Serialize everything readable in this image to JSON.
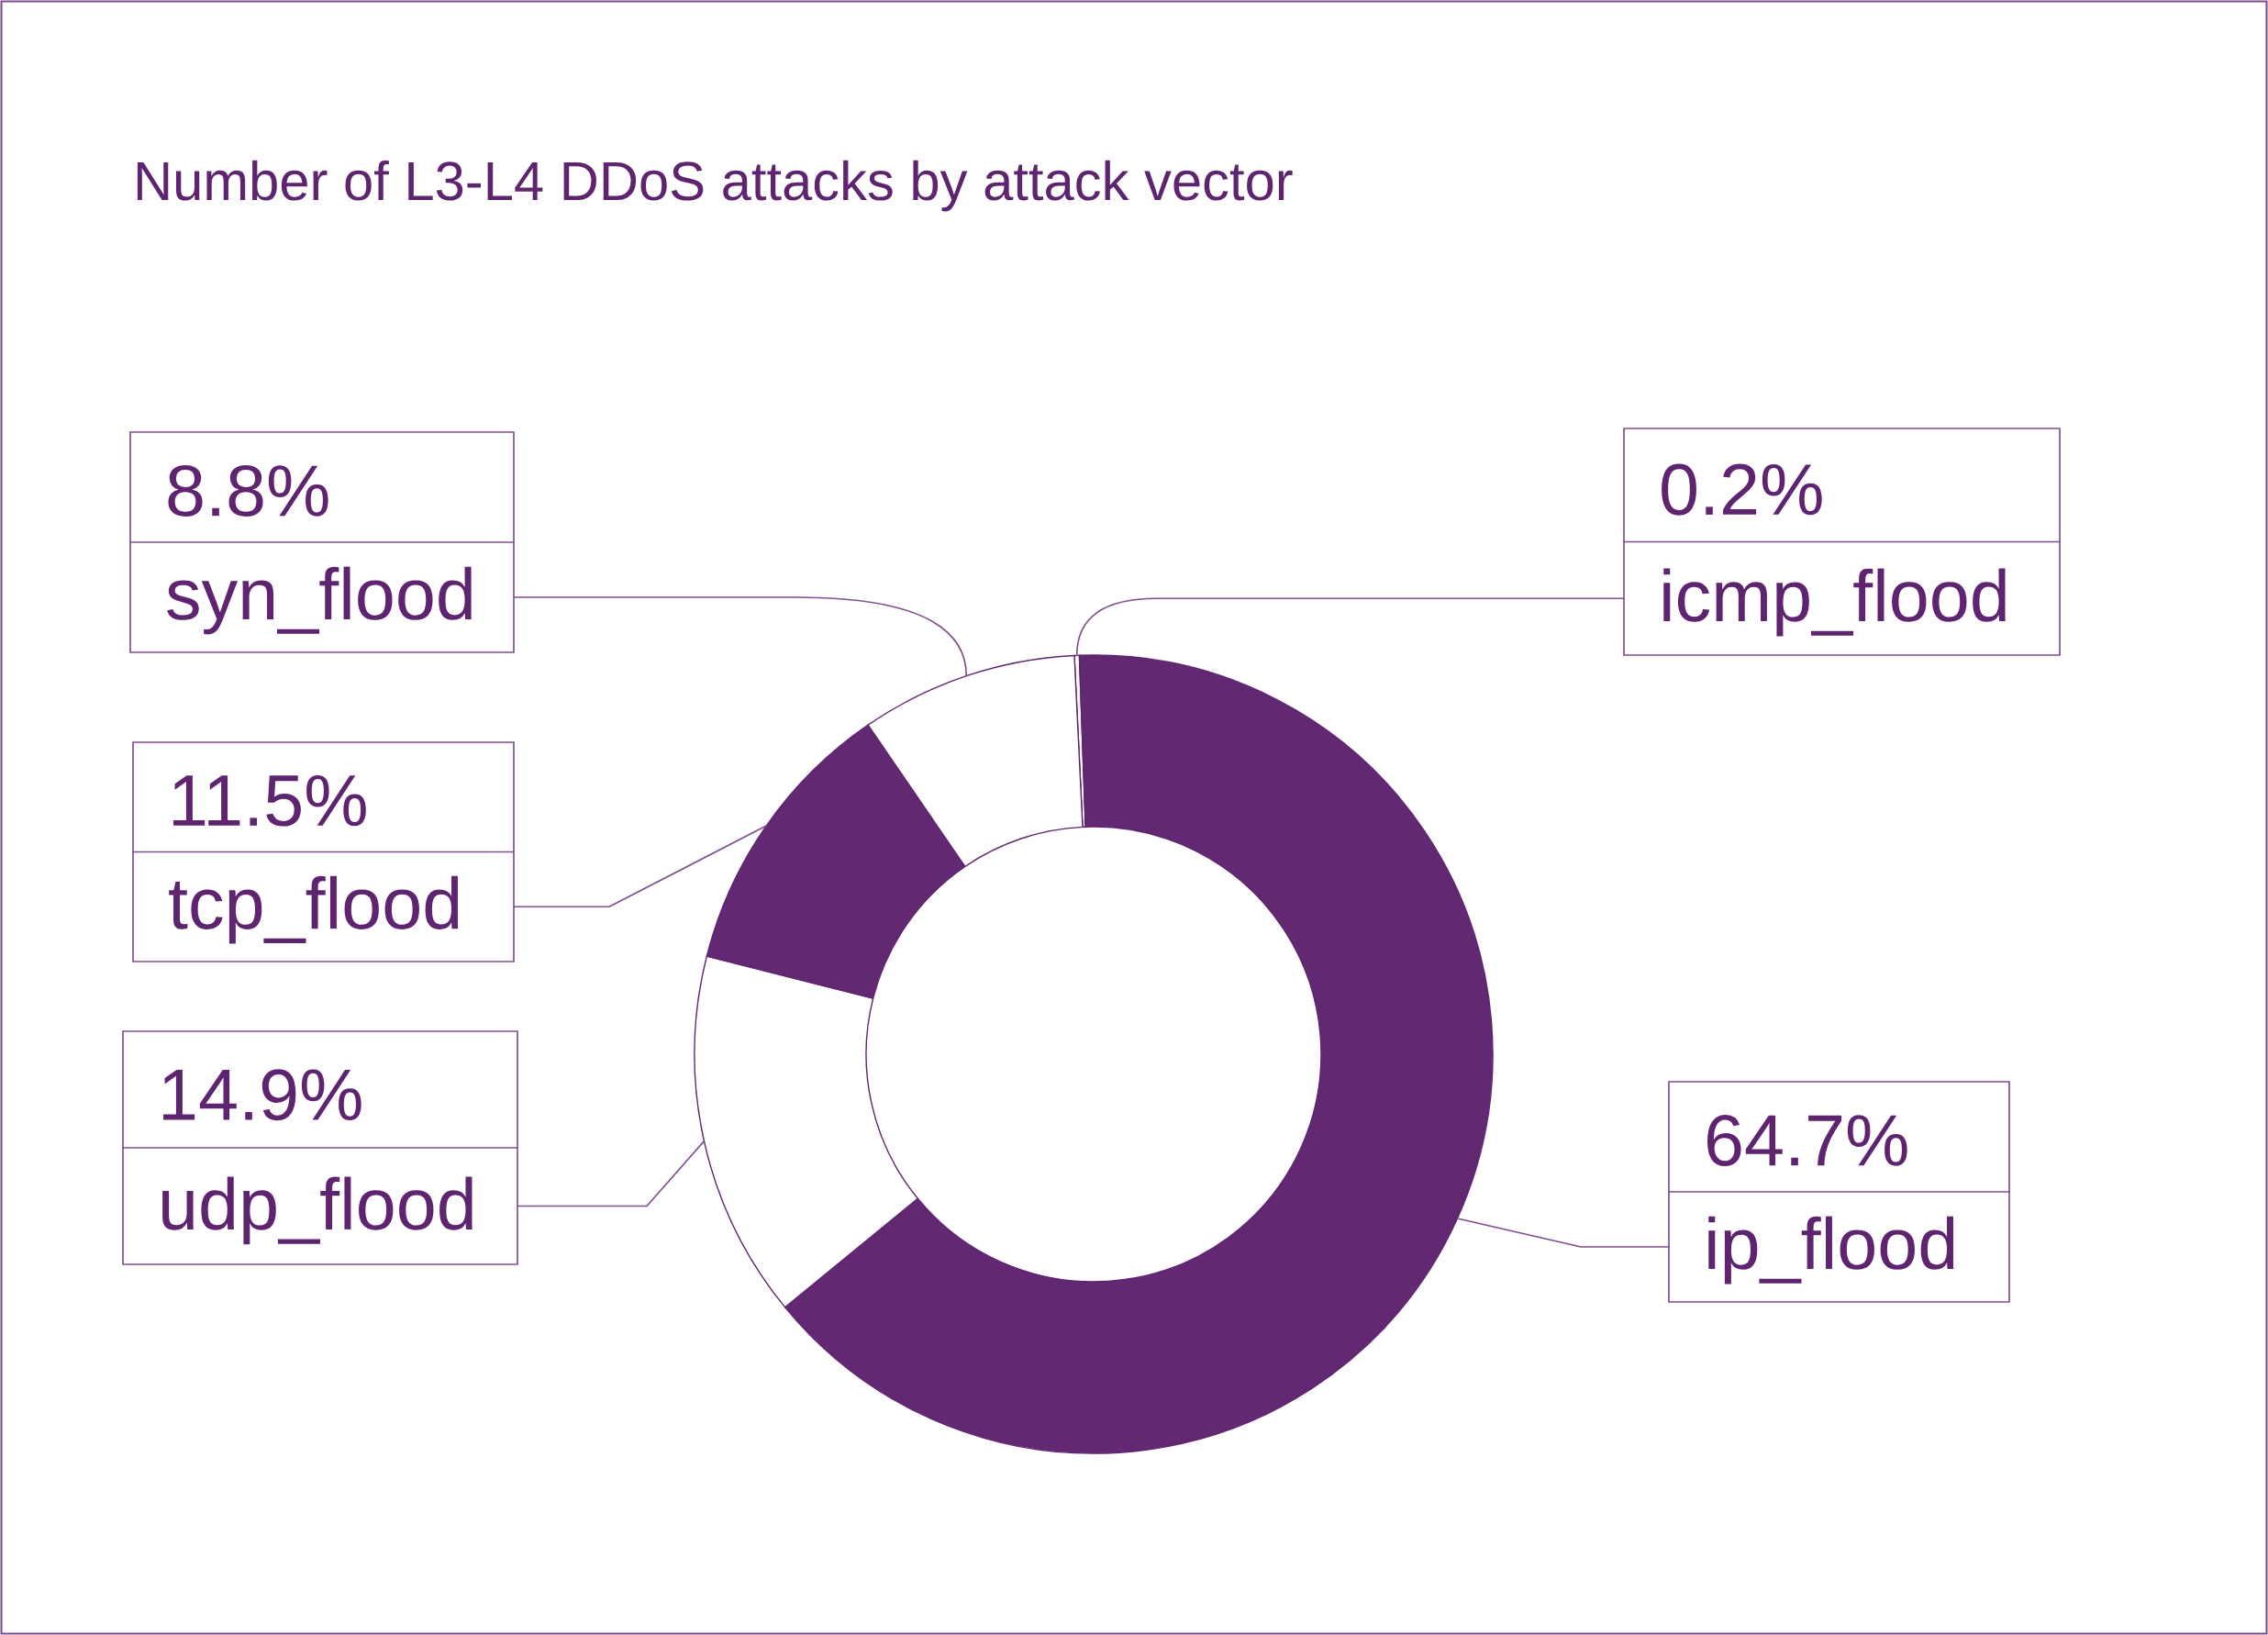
{
  "chart_data": {
    "type": "donut",
    "title": "Number of L3-L4 DDoS attacks by attack vector",
    "categories": [
      "icmp_flood",
      "ip_flood",
      "udp_flood",
      "tcp_flood",
      "syn_flood"
    ],
    "values": [
      0.2,
      64.7,
      14.9,
      11.5,
      8.8
    ],
    "colors": [
      "#ffffff",
      "#622872",
      "#ffffff",
      "#622872",
      "#ffffff"
    ],
    "value_labels": [
      "0.2%",
      "64.7%",
      "14.9%",
      "11.5%",
      "8.8%"
    ]
  }
}
